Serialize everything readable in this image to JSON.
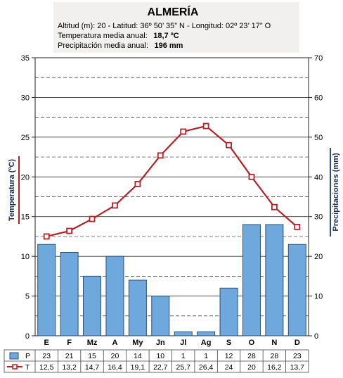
{
  "header": {
    "title": "ALMERÍA",
    "location_line": "Altitud (m): 20 - Latitud: 36º 50’ 35” N - Longitud: 02º 23’ 17” O",
    "temp_label": "Temperatura media anual:",
    "temp_value": "18,7 ºC",
    "precip_label": "Precipitación media anual:",
    "precip_value": "196 mm"
  },
  "colors": {
    "bar_fill": "#6fa8dc",
    "bar_stroke": "#2a4f7a",
    "line": "#b52025",
    "marker_fill": "#ffffff",
    "grid": "#333333",
    "axis_label": "#1c2f57",
    "header_bg": "#f1f0ee"
  },
  "chart_data": {
    "type": "bar+line",
    "categories": [
      "E",
      "F",
      "Mz",
      "A",
      "My",
      "Jn",
      "Jl",
      "Ag",
      "S",
      "O",
      "N",
      "D"
    ],
    "series": [
      {
        "name": "P",
        "axis": "right",
        "type": "bar",
        "values": [
          23,
          21,
          15,
          20,
          14,
          10,
          1,
          1,
          12,
          28,
          28,
          23
        ]
      },
      {
        "name": "T",
        "axis": "left",
        "type": "line",
        "values": [
          12.5,
          13.2,
          14.7,
          16.4,
          19.1,
          22.7,
          25.7,
          26.4,
          24,
          20,
          16.2,
          13.7
        ]
      }
    ],
    "table_rows": [
      {
        "label": "P",
        "cells": [
          "23",
          "21",
          "15",
          "20",
          "14",
          "10",
          "1",
          "1",
          "12",
          "28",
          "28",
          "23"
        ]
      },
      {
        "label": "T",
        "cells": [
          "12,5",
          "13,2",
          "14,7",
          "16,4",
          "19,1",
          "22,7",
          "25,7",
          "26,4",
          "24",
          "20",
          "16,2",
          "13,7"
        ]
      }
    ],
    "ylabel_left": "Temperatura (ºC)",
    "ylabel_right": "Precipitaciones (mm)",
    "ylim_left": [
      0,
      35
    ],
    "ylim_right": [
      0,
      70
    ],
    "yticks_left": [
      0,
      5,
      10,
      15,
      20,
      25,
      30,
      35
    ],
    "yticks_right": [
      0,
      10,
      20,
      30,
      40,
      50,
      60,
      70
    ],
    "grid": true
  }
}
